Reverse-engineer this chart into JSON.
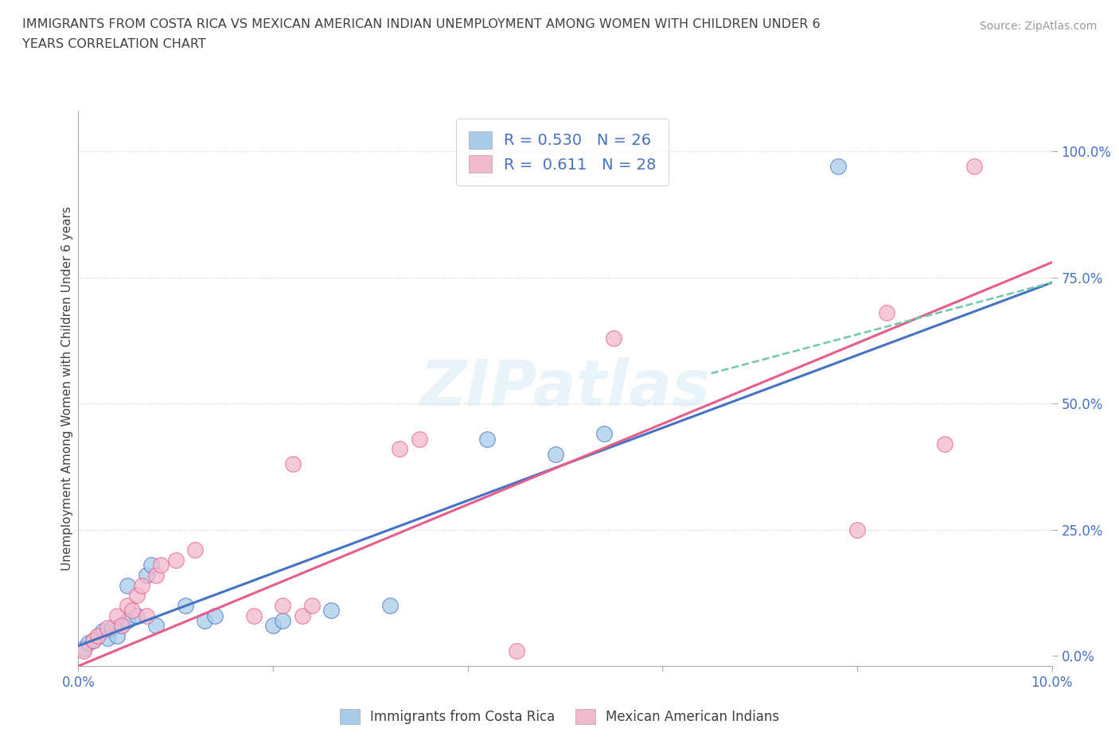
{
  "title_line1": "IMMIGRANTS FROM COSTA RICA VS MEXICAN AMERICAN INDIAN UNEMPLOYMENT AMONG WOMEN WITH CHILDREN UNDER 6",
  "title_line2": "YEARS CORRELATION CHART",
  "source": "Source: ZipAtlas.com",
  "ylabel": "Unemployment Among Women with Children Under 6 years",
  "y_ticks": [
    "0.0%",
    "25.0%",
    "50.0%",
    "75.0%",
    "100.0%"
  ],
  "y_tick_vals": [
    0,
    25,
    50,
    75,
    100
  ],
  "x_range": [
    0,
    10
  ],
  "y_range": [
    -2,
    108
  ],
  "color_blue": "#a8cce8",
  "color_pink": "#f4b8cc",
  "line_blue": "#4472c4",
  "line_pink": "#e85c8a",
  "line_dashed_color": "#70c8a8",
  "watermark": "ZIPatlas",
  "blue_scatter": [
    [
      0.05,
      1.5
    ],
    [
      0.1,
      2.5
    ],
    [
      0.15,
      3.0
    ],
    [
      0.2,
      4.0
    ],
    [
      0.25,
      5.0
    ],
    [
      0.3,
      3.5
    ],
    [
      0.35,
      5.5
    ],
    [
      0.4,
      4.0
    ],
    [
      0.45,
      6.0
    ],
    [
      0.5,
      7.0
    ],
    [
      0.5,
      14.0
    ],
    [
      0.6,
      8.0
    ],
    [
      0.7,
      16.0
    ],
    [
      0.75,
      18.0
    ],
    [
      0.8,
      6.0
    ],
    [
      1.1,
      10.0
    ],
    [
      1.3,
      7.0
    ],
    [
      1.4,
      8.0
    ],
    [
      2.0,
      6.0
    ],
    [
      2.1,
      7.0
    ],
    [
      2.6,
      9.0
    ],
    [
      3.2,
      10.0
    ],
    [
      4.2,
      43.0
    ],
    [
      4.9,
      40.0
    ],
    [
      5.4,
      44.0
    ],
    [
      7.8,
      97.0
    ]
  ],
  "pink_scatter": [
    [
      0.05,
      1.0
    ],
    [
      0.15,
      3.0
    ],
    [
      0.2,
      4.0
    ],
    [
      0.3,
      5.5
    ],
    [
      0.4,
      8.0
    ],
    [
      0.45,
      6.0
    ],
    [
      0.5,
      10.0
    ],
    [
      0.55,
      9.0
    ],
    [
      0.6,
      12.0
    ],
    [
      0.65,
      14.0
    ],
    [
      0.7,
      8.0
    ],
    [
      0.8,
      16.0
    ],
    [
      0.85,
      18.0
    ],
    [
      1.0,
      19.0
    ],
    [
      1.2,
      21.0
    ],
    [
      1.8,
      8.0
    ],
    [
      2.1,
      10.0
    ],
    [
      2.2,
      38.0
    ],
    [
      2.3,
      8.0
    ],
    [
      2.4,
      10.0
    ],
    [
      3.3,
      41.0
    ],
    [
      3.5,
      43.0
    ],
    [
      4.5,
      1.0
    ],
    [
      5.5,
      63.0
    ],
    [
      8.0,
      25.0
    ],
    [
      8.3,
      68.0
    ],
    [
      8.9,
      42.0
    ],
    [
      9.2,
      97.0
    ]
  ],
  "blue_line_x": [
    0,
    10
  ],
  "blue_line_y": [
    2,
    74
  ],
  "pink_line_x": [
    0,
    10
  ],
  "pink_line_y": [
    -2,
    78
  ],
  "dash_line_x": [
    6.5,
    10
  ],
  "dash_line_y": [
    56,
    74
  ]
}
